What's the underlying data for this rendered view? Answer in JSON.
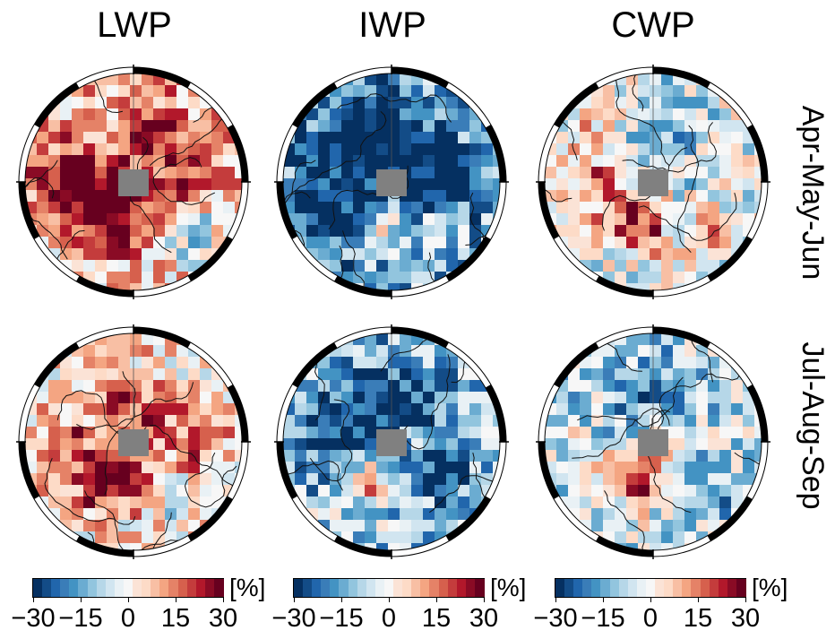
{
  "columns": [
    "LWP",
    "IWP",
    "CWP"
  ],
  "rows": [
    "Apr-May-Jun",
    "Jul-Aug-Sep"
  ],
  "colorbar": {
    "unit": "[%]",
    "ticks": [
      "−30",
      "−15",
      "0",
      "15",
      "30"
    ],
    "range": [
      -30,
      30
    ],
    "colors": [
      "#053061",
      "#134c87",
      "#2166ac",
      "#3a7db8",
      "#4393c3",
      "#6bacd1",
      "#92c5de",
      "#b6d7e8",
      "#d1e5f0",
      "#e9f1f5",
      "#f7f7f7",
      "#fbe3d6",
      "#fddbc7",
      "#f8bfa4",
      "#f4a582",
      "#e58267",
      "#d6604d",
      "#c43c3c",
      "#b2182b",
      "#8a0b25",
      "#67001f"
    ],
    "land_mask_color": "#808080"
  },
  "chart_data": [
    {
      "type": "heatmap",
      "title": "LWP",
      "row": "Apr-May-Jun",
      "projection": "north polar stereographic",
      "value_range": [
        -30,
        30
      ],
      "summary": "mostly positive anomalies; strongest over Greenland and the Canadian archipelago, negative patches in the North Atlantic and Eurasian sector"
    },
    {
      "type": "heatmap",
      "title": "IWP",
      "row": "Apr-May-Jun",
      "projection": "north polar stereographic",
      "value_range": [
        -30,
        30
      ],
      "summary": "predominantly negative anomalies, strongest over the Canadian Arctic and central Arctic Ocean"
    },
    {
      "type": "heatmap",
      "title": "CWP",
      "row": "Apr-May-Jun",
      "projection": "north polar stereographic",
      "value_range": [
        -30,
        30
      ],
      "summary": "mixed; positive over Greenland, negative over the central Arctic"
    },
    {
      "type": "heatmap",
      "title": "LWP",
      "row": "Jul-Aug-Sep",
      "projection": "north polar stereographic",
      "value_range": [
        -30,
        30
      ],
      "summary": "positive anomalies over Greenland and Alaska/Chukchi region, weak negative elsewhere"
    },
    {
      "type": "heatmap",
      "title": "IWP",
      "row": "Jul-Aug-Sep",
      "projection": "north polar stereographic",
      "value_range": [
        -30,
        30
      ],
      "summary": "widespread negative anomalies, positive over southern Greenland"
    },
    {
      "type": "heatmap",
      "title": "CWP",
      "row": "Jul-Aug-Sep",
      "projection": "north polar stereographic",
      "value_range": [
        -30,
        30
      ],
      "summary": "mostly negative with positive over Greenland"
    }
  ]
}
